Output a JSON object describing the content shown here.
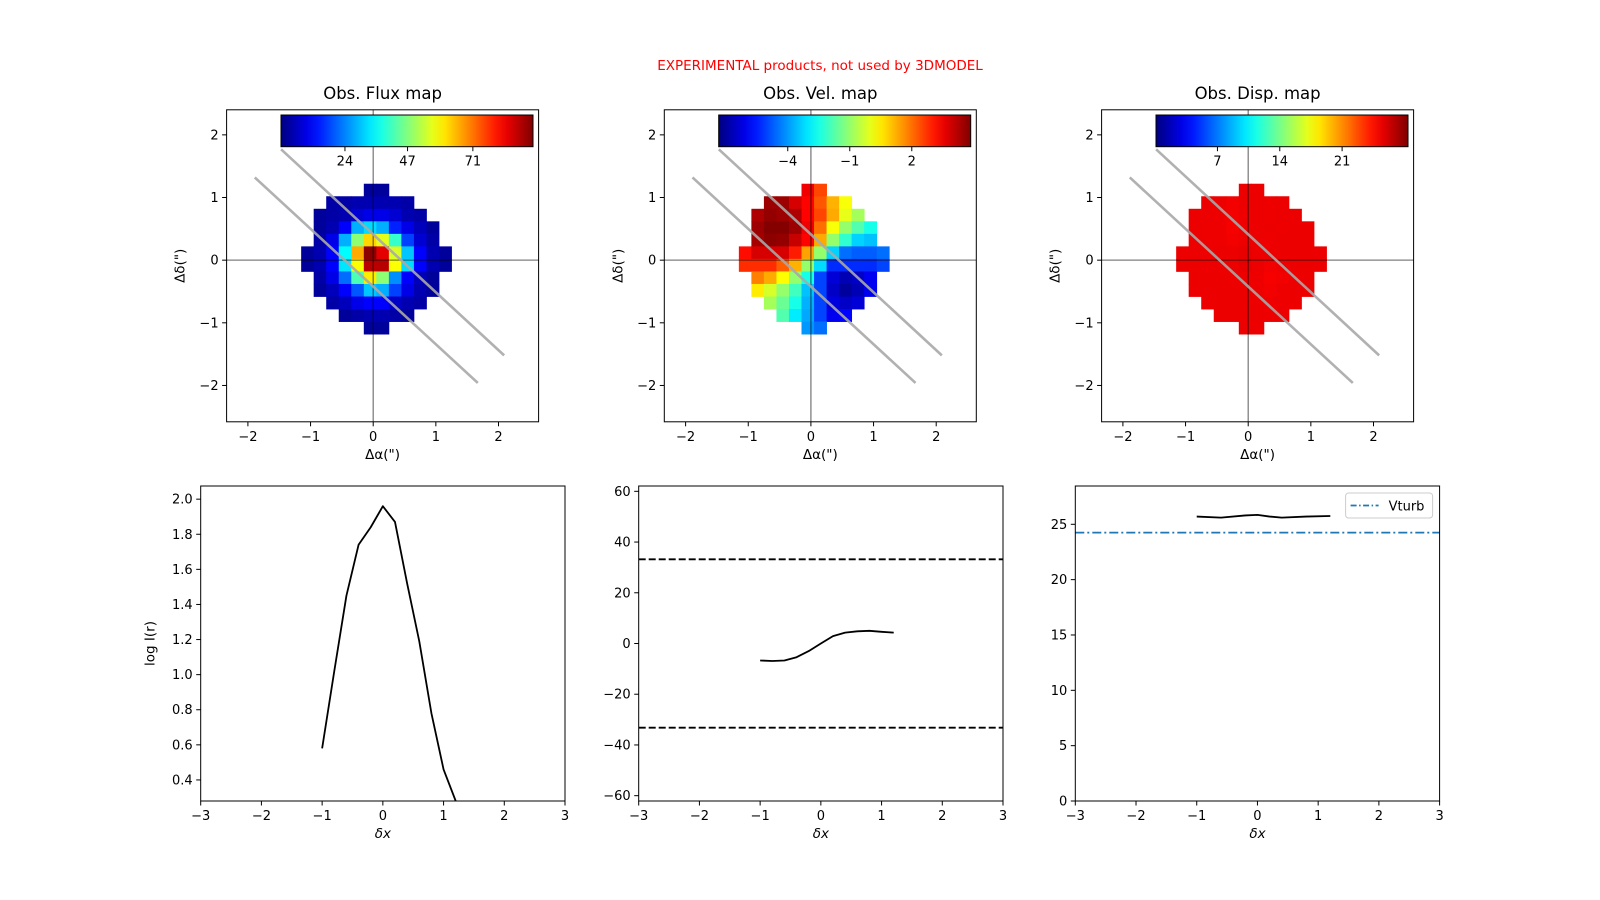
{
  "banner": "EXPERIMENTAL products, not used by 3DMODEL",
  "banner_color": "#ff0000",
  "chart_data": [
    {
      "type": "heatmap",
      "id": "flux",
      "title": "Obs. Flux map",
      "xlabel": "Δα(\")",
      "ylabel": "Δδ(\")",
      "xlim": [
        -2.34,
        2.64
      ],
      "ylim": [
        -2.58,
        2.4
      ],
      "xticks": [
        -2,
        -1,
        0,
        1,
        2
      ],
      "yticks": [
        -2,
        -1,
        0,
        1,
        2
      ],
      "colormap": "jet",
      "clim": [
        0.5,
        93.1
      ],
      "colorbar_ticks": [
        24,
        47,
        71
      ],
      "grid_x0": -1.15,
      "grid_y0": 1.22,
      "cell": 0.2,
      "rows": [
        {
          "c0": 5,
          "v": [
            3,
            3
          ]
        },
        {
          "c0": 2,
          "v": [
            4,
            4,
            5,
            5,
            5,
            5,
            4
          ]
        },
        {
          "c0": 1,
          "v": [
            3,
            4,
            5,
            8,
            10,
            10,
            8,
            5,
            4
          ]
        },
        {
          "c0": 1,
          "v": [
            3,
            5,
            12,
            28,
            32,
            28,
            15,
            10,
            6,
            3
          ]
        },
        {
          "c0": 1,
          "v": [
            4,
            10,
            28,
            48,
            62,
            56,
            40,
            18,
            8,
            4
          ]
        },
        {
          "c0": 0,
          "v": [
            3,
            5,
            12,
            35,
            66,
            92,
            84,
            55,
            30,
            12,
            5,
            3
          ]
        },
        {
          "c0": 0,
          "v": [
            3,
            5,
            12,
            33,
            58,
            88,
            88,
            58,
            32,
            12,
            5,
            3
          ]
        },
        {
          "c0": 1,
          "v": [
            4,
            10,
            22,
            42,
            60,
            48,
            25,
            12,
            6,
            3
          ]
        },
        {
          "c0": 1,
          "v": [
            3,
            6,
            12,
            20,
            30,
            28,
            18,
            10,
            5,
            3
          ]
        },
        {
          "c0": 2,
          "v": [
            4,
            6,
            10,
            12,
            12,
            7,
            5,
            4
          ]
        },
        {
          "c0": 3,
          "v": [
            3,
            4,
            5,
            5,
            4,
            3
          ]
        },
        {
          "c0": 5,
          "v": [
            3,
            3
          ]
        }
      ],
      "slits": [
        [
          [
            -1.47,
            1.77
          ],
          [
            2.09,
            -1.52
          ]
        ],
        [
          [
            -1.89,
            1.32
          ],
          [
            1.67,
            -1.96
          ]
        ]
      ]
    },
    {
      "type": "heatmap",
      "id": "vel",
      "title": "Obs. Vel. map",
      "xlabel": "Δα(\")",
      "ylabel": "Δδ(\")",
      "xlim": [
        -2.34,
        2.64
      ],
      "ylim": [
        -2.58,
        2.4
      ],
      "xticks": [
        -2,
        -1,
        0,
        1,
        2
      ],
      "yticks": [
        -2,
        -1,
        0,
        1,
        2
      ],
      "colormap": "jet",
      "clim": [
        -7.34,
        4.85
      ],
      "colorbar_ticks": [
        -4,
        -1,
        2
      ],
      "grid_x0": -1.15,
      "grid_y0": 1.22,
      "cell": 0.2,
      "rows": [
        {
          "c0": 5,
          "v": [
            3.5,
            2.5
          ]
        },
        {
          "c0": 2,
          "v": [
            4.5,
            4.5,
            3.8,
            3.3,
            2.3,
            1.2,
            0.2
          ]
        },
        {
          "c0": 1,
          "v": [
            4.3,
            4.6,
            4.5,
            4.3,
            3.3,
            2.5,
            1.3,
            0,
            -0.8
          ]
        },
        {
          "c0": 1,
          "v": [
            4.5,
            4.8,
            4.8,
            4.5,
            3.5,
            2.0,
            0.2,
            -1,
            -1.8,
            -2.5
          ]
        },
        {
          "c0": 1,
          "v": [
            4.4,
            4.7,
            4.6,
            4.0,
            3.3,
            1.3,
            -1,
            -2.2,
            -3.3,
            -3.5
          ]
        },
        {
          "c0": 0,
          "v": [
            3.2,
            3.8,
            3.8,
            3.8,
            3.0,
            1.4,
            -1,
            -3.3,
            -4.5,
            -4.7,
            -4.7,
            -4.5
          ]
        },
        {
          "c0": 0,
          "v": [
            2.8,
            2.8,
            2.8,
            2.2,
            1.2,
            -1,
            -3.2,
            -5.3,
            -5.3,
            -5.3,
            -5.3,
            -5
          ]
        },
        {
          "c0": 1,
          "v": [
            1.8,
            1.3,
            0.3,
            -1,
            -2.5,
            -5,
            -6.3,
            -6.7,
            -6.5,
            -6
          ]
        },
        {
          "c0": 1,
          "v": [
            0.5,
            -0.2,
            -1,
            -2,
            -3.5,
            -5,
            -6.5,
            -7,
            -6.7,
            -6
          ]
        },
        {
          "c0": 2,
          "v": [
            -0.8,
            -1.5,
            -2.5,
            -3.7,
            -5,
            -6.2,
            -6.5,
            -6.3
          ]
        },
        {
          "c0": 3,
          "v": [
            -1.8,
            -3,
            -3.8,
            -5,
            -6,
            -5.8
          ]
        },
        {
          "c0": 5,
          "v": [
            -4,
            -4.5
          ]
        }
      ],
      "slits": [
        [
          [
            -1.47,
            1.77
          ],
          [
            2.09,
            -1.52
          ]
        ],
        [
          [
            -1.89,
            1.32
          ],
          [
            1.67,
            -1.96
          ]
        ]
      ]
    },
    {
      "type": "heatmap",
      "id": "disp",
      "title": "Obs. Disp. map",
      "xlabel": "Δα(\")",
      "ylabel": "Δδ(\")",
      "xlim": [
        -2.34,
        2.64
      ],
      "ylim": [
        -2.58,
        2.4
      ],
      "xticks": [
        -2,
        -1,
        0,
        1,
        2
      ],
      "yticks": [
        -2,
        -1,
        0,
        1,
        2
      ],
      "colormap": "jet",
      "clim": [
        0.1,
        28.4
      ],
      "colorbar_ticks": [
        7,
        14,
        21
      ],
      "grid_x0": -1.15,
      "grid_y0": 1.22,
      "cell": 0.2,
      "rows": [
        {
          "c0": 5,
          "v": [
            25.4,
            25.4
          ]
        },
        {
          "c0": 2,
          "v": [
            25.4,
            25.4,
            25.2,
            25.4,
            25.4,
            25.3,
            25.4
          ]
        },
        {
          "c0": 1,
          "v": [
            25.4,
            25.4,
            25.3,
            25.2,
            25.3,
            25.4,
            25.3,
            25.4,
            25.4
          ]
        },
        {
          "c0": 1,
          "v": [
            25.4,
            25.3,
            25.3,
            25.1,
            25.3,
            25.4,
            25.4,
            25.3,
            25.4,
            25.4
          ]
        },
        {
          "c0": 1,
          "v": [
            25.4,
            25.3,
            25.3,
            25.2,
            25.3,
            25.4,
            25.3,
            25.4,
            25.4,
            25.4
          ]
        },
        {
          "c0": 0,
          "v": [
            25.4,
            25.4,
            25.3,
            25.4,
            25.4,
            25.5,
            25.4,
            25.4,
            25.4,
            25.4,
            25.4,
            25.4
          ]
        },
        {
          "c0": 0,
          "v": [
            25.4,
            25.4,
            25.3,
            25.4,
            25.4,
            25.5,
            25.4,
            25.2,
            25.3,
            25.4,
            25.4,
            25.4
          ]
        },
        {
          "c0": 1,
          "v": [
            25.4,
            25.4,
            25.4,
            25.4,
            25.4,
            25.3,
            25.1,
            25.2,
            25.4,
            25.4
          ]
        },
        {
          "c0": 1,
          "v": [
            25.4,
            25.4,
            25.4,
            25.4,
            25.4,
            25.3,
            25.2,
            25.3,
            25.4,
            25.4
          ]
        },
        {
          "c0": 2,
          "v": [
            25.4,
            25.4,
            25.4,
            25.4,
            25.4,
            25.3,
            25.3,
            25.4
          ]
        },
        {
          "c0": 3,
          "v": [
            25.4,
            25.4,
            25.4,
            25.4,
            25.3,
            25.4
          ]
        },
        {
          "c0": 5,
          "v": [
            25.4,
            25.4
          ]
        }
      ],
      "slits": [
        [
          [
            -1.47,
            1.77
          ],
          [
            2.09,
            -1.52
          ]
        ],
        [
          [
            -1.89,
            1.32
          ],
          [
            1.67,
            -1.96
          ]
        ]
      ]
    },
    {
      "type": "line",
      "id": "profile",
      "title": "",
      "xlabel": "δx",
      "ylabel": "log I(r)",
      "xlim": [
        -3,
        3
      ],
      "ylim": [
        0.28,
        2.075
      ],
      "xticks": [
        -3,
        -2,
        -1,
        0,
        1,
        2,
        3
      ],
      "yticks": [
        0.4,
        0.6,
        0.8,
        1.0,
        1.2,
        1.4,
        1.6,
        1.8,
        2.0
      ],
      "ytick_decimals": 1,
      "series": [
        {
          "name": "log I(r)",
          "color": "#000000",
          "style": "solid",
          "x": [
            -1.0,
            -0.8,
            -0.6,
            -0.4,
            -0.2,
            0.0,
            0.2,
            0.4,
            0.6,
            0.8,
            1.0,
            1.2
          ],
          "y": [
            0.58,
            1.02,
            1.45,
            1.74,
            1.84,
            1.96,
            1.87,
            1.52,
            1.19,
            0.78,
            0.46,
            0.28
          ]
        }
      ],
      "hlines": []
    },
    {
      "type": "line",
      "id": "velcurve",
      "title": "",
      "xlabel": "δx",
      "ylabel": "",
      "xlim": [
        -3,
        3
      ],
      "ylim": [
        -62.1,
        62.1
      ],
      "xticks": [
        -3,
        -2,
        -1,
        0,
        1,
        2,
        3
      ],
      "yticks": [
        -60,
        -40,
        -20,
        0,
        20,
        40,
        60
      ],
      "ytick_decimals": 0,
      "series": [
        {
          "name": "velocity",
          "color": "#000000",
          "style": "solid",
          "x": [
            -1.0,
            -0.8,
            -0.6,
            -0.4,
            -0.2,
            0.0,
            0.2,
            0.4,
            0.6,
            0.8,
            1.0,
            1.2
          ],
          "y": [
            -6.7,
            -6.9,
            -6.7,
            -5.4,
            -3.0,
            0.0,
            2.9,
            4.3,
            4.8,
            5.0,
            4.6,
            4.3
          ]
        }
      ],
      "hlines": [
        {
          "y": 33.2,
          "color": "#000000",
          "style": "dashed"
        },
        {
          "y": -33.2,
          "color": "#000000",
          "style": "dashed"
        }
      ]
    },
    {
      "type": "line",
      "id": "dispcurve",
      "title": "",
      "xlabel": "δx",
      "ylabel": "",
      "xlim": [
        -3,
        3
      ],
      "ylim": [
        0,
        28.46
      ],
      "xticks": [
        -3,
        -2,
        -1,
        0,
        1,
        2,
        3
      ],
      "yticks": [
        0,
        5,
        10,
        15,
        20,
        25
      ],
      "ytick_decimals": 0,
      "series": [
        {
          "name": "dispersion",
          "color": "#000000",
          "style": "solid",
          "x": [
            -1.0,
            -0.6,
            -0.2,
            0.0,
            0.2,
            0.4,
            0.8,
            1.2
          ],
          "y": [
            25.7,
            25.6,
            25.8,
            25.85,
            25.7,
            25.6,
            25.7,
            25.75
          ]
        }
      ],
      "hlines": [
        {
          "y": 24.25,
          "color": "#1f77b4",
          "style": "dashdot",
          "label": "Vturb"
        }
      ],
      "legend": {
        "entries": [
          "Vturb"
        ],
        "placement": "upper-right"
      }
    }
  ]
}
